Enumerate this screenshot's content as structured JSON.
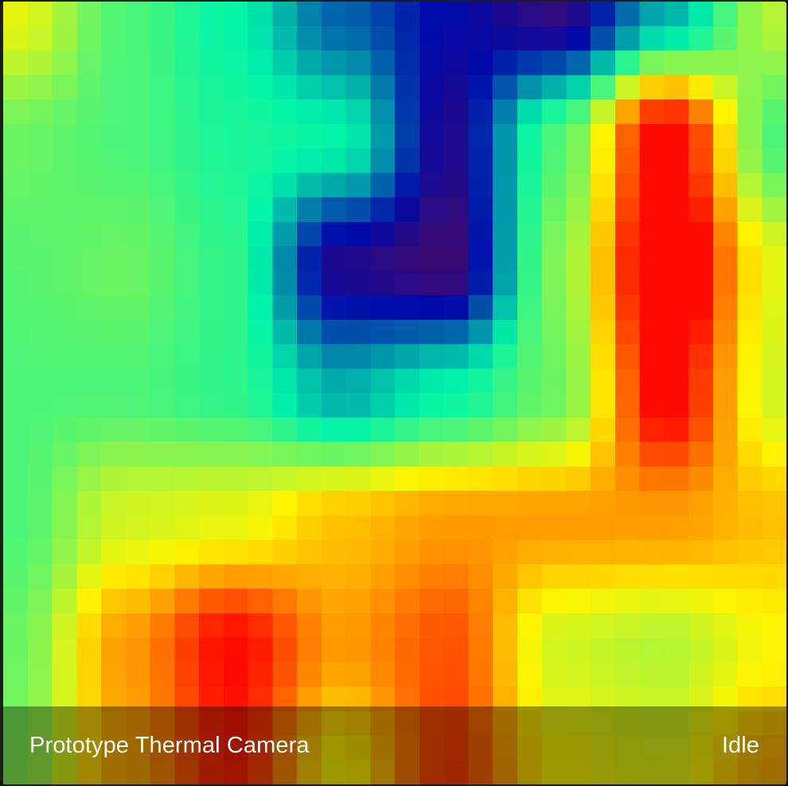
{
  "card": {
    "title": "Prototype Thermal Camera",
    "state": "Idle"
  },
  "thermal_image": {
    "colormap": "jet",
    "grid": [
      32,
      32
    ],
    "control_points": [
      [
        0.6,
        0.45,
        0.38,
        0.22,
        0.12,
        0.06,
        0.3,
        0.55
      ],
      [
        0.48,
        0.45,
        0.4,
        0.38,
        0.08,
        0.45,
        0.92,
        0.45
      ],
      [
        0.46,
        0.48,
        0.42,
        0.08,
        0.04,
        0.5,
        0.98,
        0.6
      ],
      [
        0.45,
        0.45,
        0.42,
        0.3,
        0.38,
        0.48,
        0.9,
        0.58
      ],
      [
        0.45,
        0.58,
        0.6,
        0.68,
        0.72,
        0.72,
        0.72,
        0.68
      ],
      [
        0.48,
        0.72,
        0.88,
        0.72,
        0.8,
        0.58,
        0.55,
        0.62
      ],
      [
        0.5,
        0.7,
        0.85,
        0.62,
        0.82,
        0.62,
        0.6,
        0.7
      ]
    ]
  }
}
